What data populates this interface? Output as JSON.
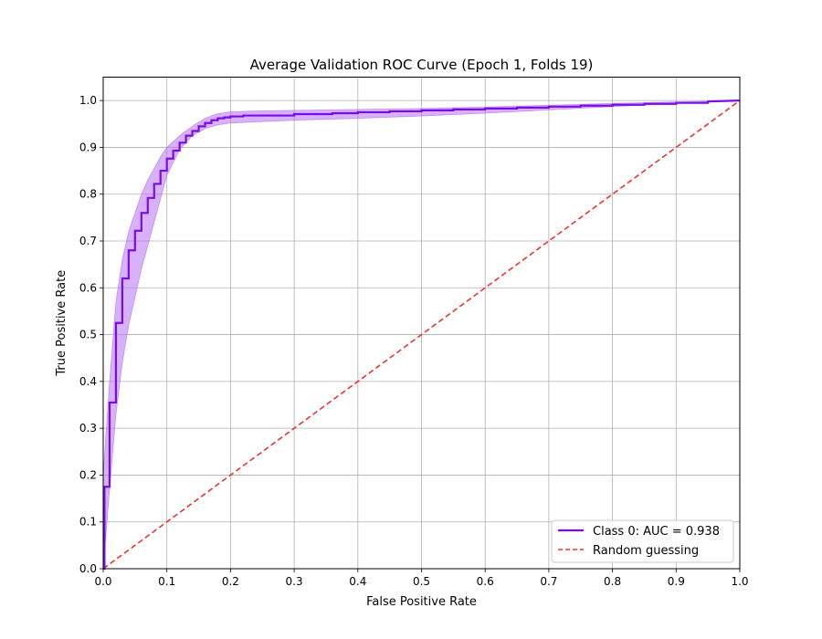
{
  "chart_data": {
    "type": "line",
    "title": "Average Validation ROC Curve (Epoch 1, Folds 19)",
    "xlabel": "False Positive Rate",
    "ylabel": "True Positive Rate",
    "xlim": [
      0,
      1
    ],
    "ylim": [
      0,
      1.05
    ],
    "xticks": [
      "0.0",
      "0.1",
      "0.2",
      "0.3",
      "0.4",
      "0.5",
      "0.6",
      "0.7",
      "0.8",
      "0.9",
      "1.0"
    ],
    "yticks": [
      "0.0",
      "0.1",
      "0.2",
      "0.3",
      "0.4",
      "0.5",
      "0.6",
      "0.7",
      "0.8",
      "0.9",
      "1.0"
    ],
    "grid": true,
    "legend_position": "bottom-right",
    "series": [
      {
        "name": "Class 0: AUC = 0.938",
        "color": "#7B0CE8",
        "style": "solid-step",
        "x": [
          0,
          0.002,
          0.002,
          0.01,
          0.01,
          0.02,
          0.02,
          0.03,
          0.03,
          0.04,
          0.04,
          0.05,
          0.05,
          0.06,
          0.06,
          0.07,
          0.07,
          0.08,
          0.08,
          0.09,
          0.09,
          0.1,
          0.1,
          0.11,
          0.11,
          0.12,
          0.12,
          0.13,
          0.13,
          0.14,
          0.14,
          0.15,
          0.15,
          0.16,
          0.16,
          0.17,
          0.17,
          0.18,
          0.18,
          0.19,
          0.19,
          0.2,
          0.2,
          0.22,
          0.22,
          0.3,
          0.3,
          0.36,
          0.36,
          0.4,
          0.4,
          0.45,
          0.45,
          0.5,
          0.5,
          0.55,
          0.55,
          0.6,
          0.6,
          0.65,
          0.65,
          0.7,
          0.7,
          0.75,
          0.75,
          0.8,
          0.8,
          0.85,
          0.85,
          0.9,
          0.9,
          0.95,
          0.95,
          1.0
        ],
        "y": [
          0,
          0,
          0.175,
          0.175,
          0.355,
          0.355,
          0.525,
          0.525,
          0.62,
          0.62,
          0.68,
          0.68,
          0.722,
          0.722,
          0.76,
          0.76,
          0.792,
          0.792,
          0.822,
          0.822,
          0.85,
          0.85,
          0.876,
          0.876,
          0.893,
          0.893,
          0.91,
          0.91,
          0.925,
          0.925,
          0.935,
          0.935,
          0.945,
          0.945,
          0.952,
          0.952,
          0.958,
          0.958,
          0.962,
          0.962,
          0.964,
          0.964,
          0.966,
          0.966,
          0.968,
          0.968,
          0.971,
          0.971,
          0.973,
          0.973,
          0.975,
          0.975,
          0.977,
          0.977,
          0.979,
          0.979,
          0.981,
          0.981,
          0.983,
          0.983,
          0.985,
          0.985,
          0.987,
          0.987,
          0.989,
          0.989,
          0.991,
          0.991,
          0.993,
          0.993,
          0.995,
          0.995,
          0.998,
          1.0
        ]
      },
      {
        "name": "Random guessing",
        "color": "#EE3333",
        "style": "dashed",
        "x": [
          0,
          1
        ],
        "y": [
          0,
          1
        ]
      }
    ],
    "band": {
      "color": "#B673F5",
      "x": [
        0,
        0.01,
        0.02,
        0.03,
        0.04,
        0.05,
        0.06,
        0.07,
        0.08,
        0.09,
        0.1,
        0.12,
        0.14,
        0.16,
        0.18,
        0.2,
        0.25,
        0.3,
        0.4,
        0.5,
        0.6,
        0.7,
        0.8,
        0.9,
        1.0
      ],
      "upper": [
        0.2,
        0.4,
        0.57,
        0.66,
        0.72,
        0.76,
        0.8,
        0.83,
        0.855,
        0.88,
        0.9,
        0.925,
        0.945,
        0.962,
        0.972,
        0.976,
        0.978,
        0.979,
        0.981,
        0.983,
        0.986,
        0.99,
        0.994,
        0.997,
        1.0
      ],
      "lower": [
        0.0,
        0.17,
        0.33,
        0.44,
        0.52,
        0.58,
        0.64,
        0.69,
        0.74,
        0.79,
        0.84,
        0.895,
        0.925,
        0.94,
        0.948,
        0.952,
        0.955,
        0.958,
        0.962,
        0.967,
        0.973,
        0.98,
        0.987,
        0.994,
        1.0
      ]
    }
  }
}
